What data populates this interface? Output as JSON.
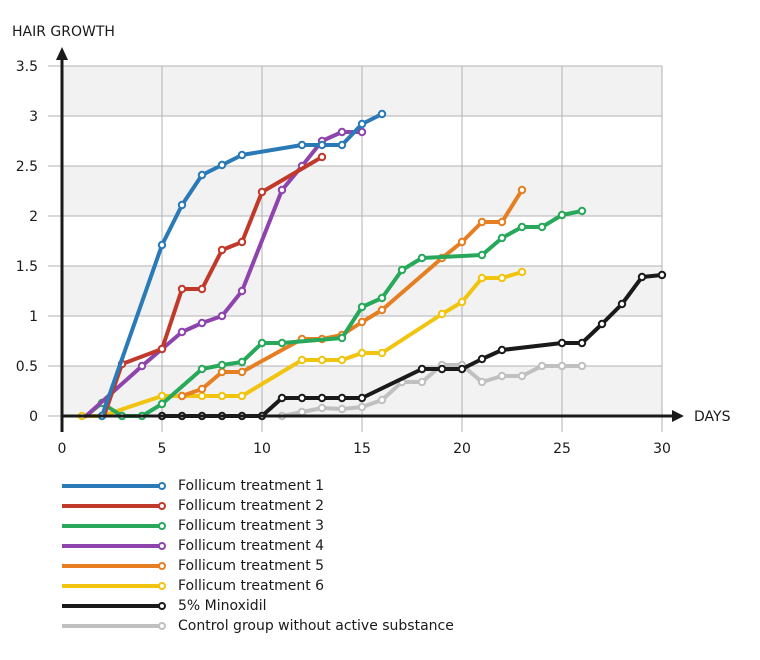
{
  "chart_data": {
    "type": "line",
    "title": "",
    "xlabel": "DAYS",
    "ylabel": "HAIR GROWTH",
    "xlim": [
      0,
      30
    ],
    "ylim": [
      0,
      3.5
    ],
    "xticks": [
      0,
      5,
      10,
      15,
      20,
      25,
      30
    ],
    "yticks": [
      0,
      0.5,
      1,
      1.5,
      2,
      2.5,
      3,
      3.5
    ],
    "ytick_labels": [
      "0",
      "0.5",
      "1",
      "1.5",
      "2",
      "2.5",
      "3",
      "3.5"
    ],
    "grid": true,
    "legend_position": "bottom",
    "series": [
      {
        "name": "Follicum treatment 1",
        "color": "#2a7ab8",
        "points": [
          [
            2,
            0
          ],
          [
            5,
            1.71
          ],
          [
            6,
            2.11
          ],
          [
            7,
            2.41
          ],
          [
            8,
            2.51
          ],
          [
            9,
            2.61
          ],
          [
            12,
            2.71
          ],
          [
            13,
            2.71
          ],
          [
            14,
            2.71
          ],
          [
            15,
            2.92
          ],
          [
            16,
            3.02
          ]
        ]
      },
      {
        "name": "Follicum treatment 2",
        "color": "#c0392b",
        "points": [
          [
            2.1,
            0
          ],
          [
            3,
            0.52
          ],
          [
            5,
            0.67
          ],
          [
            6,
            1.27
          ],
          [
            7,
            1.27
          ],
          [
            8,
            1.66
          ],
          [
            9,
            1.74
          ],
          [
            10,
            2.24
          ],
          [
            13,
            2.59
          ]
        ]
      },
      {
        "name": "Follicum treatment 3",
        "color": "#27a85a",
        "points": [
          [
            1.2,
            0
          ],
          [
            2,
            0.13
          ],
          [
            3,
            0
          ],
          [
            4,
            0
          ],
          [
            5,
            0.12
          ],
          [
            7,
            0.47
          ],
          [
            8,
            0.51
          ],
          [
            9,
            0.54
          ],
          [
            10,
            0.73
          ],
          [
            11,
            0.73
          ],
          [
            14,
            0.78
          ],
          [
            15,
            1.09
          ],
          [
            16,
            1.18
          ],
          [
            17,
            1.46
          ],
          [
            18,
            1.58
          ],
          [
            21,
            1.61
          ],
          [
            22,
            1.78
          ],
          [
            23,
            1.89
          ],
          [
            24,
            1.89
          ],
          [
            25,
            2.01
          ],
          [
            26,
            2.05
          ]
        ]
      },
      {
        "name": "Follicum treatment 4",
        "color": "#8e44ad",
        "points": [
          [
            1.2,
            0
          ],
          [
            4,
            0.5
          ],
          [
            5,
            0.67
          ],
          [
            6,
            0.84
          ],
          [
            7,
            0.93
          ],
          [
            8,
            1.0
          ],
          [
            9,
            1.25
          ],
          [
            11,
            2.26
          ],
          [
            12,
            2.5
          ],
          [
            13,
            2.75
          ],
          [
            14,
            2.84
          ],
          [
            15,
            2.84
          ]
        ]
      },
      {
        "name": "Follicum treatment 5",
        "color": "#e67e22",
        "points": [
          [
            6,
            0.2
          ],
          [
            7,
            0.27
          ],
          [
            8,
            0.44
          ],
          [
            9,
            0.44
          ],
          [
            12,
            0.77
          ],
          [
            13,
            0.77
          ],
          [
            14,
            0.81
          ],
          [
            15,
            0.94
          ],
          [
            16,
            1.06
          ],
          [
            19,
            1.58
          ],
          [
            20,
            1.74
          ],
          [
            21,
            1.94
          ],
          [
            22,
            1.94
          ],
          [
            23,
            2.26
          ]
        ]
      },
      {
        "name": "Follicum treatment 6",
        "color": "#f1c40f",
        "points": [
          [
            1,
            0
          ],
          [
            2,
            0
          ],
          [
            5,
            0.2
          ],
          [
            6,
            0.2
          ],
          [
            7,
            0.2
          ],
          [
            8,
            0.2
          ],
          [
            9,
            0.2
          ],
          [
            12,
            0.56
          ],
          [
            13,
            0.56
          ],
          [
            14,
            0.56
          ],
          [
            15,
            0.63
          ],
          [
            16,
            0.63
          ],
          [
            19,
            1.02
          ],
          [
            20,
            1.14
          ],
          [
            21,
            1.38
          ],
          [
            22,
            1.38
          ],
          [
            23,
            1.44
          ]
        ]
      },
      {
        "name": "5% Minoxidil",
        "color": "#1a1a1a",
        "points": [
          [
            5,
            0
          ],
          [
            6,
            0
          ],
          [
            7,
            0
          ],
          [
            8,
            0
          ],
          [
            9,
            0
          ],
          [
            10,
            0
          ],
          [
            11,
            0.18
          ],
          [
            12,
            0.18
          ],
          [
            13,
            0.18
          ],
          [
            14,
            0.18
          ],
          [
            15,
            0.18
          ],
          [
            18,
            0.47
          ],
          [
            19,
            0.47
          ],
          [
            20,
            0.47
          ],
          [
            21,
            0.57
          ],
          [
            22,
            0.66
          ],
          [
            25,
            0.73
          ],
          [
            26,
            0.73
          ],
          [
            27,
            0.92
          ],
          [
            28,
            1.12
          ],
          [
            29,
            1.39
          ],
          [
            30,
            1.41
          ]
        ]
      },
      {
        "name": "Control group without active substance",
        "color": "#c0c0c0",
        "points": [
          [
            11,
            0
          ],
          [
            12,
            0.04
          ],
          [
            13,
            0.08
          ],
          [
            14,
            0.07
          ],
          [
            15,
            0.09
          ],
          [
            16,
            0.16
          ],
          [
            17,
            0.34
          ],
          [
            18,
            0.34
          ],
          [
            19,
            0.51
          ],
          [
            20,
            0.51
          ],
          [
            21,
            0.34
          ],
          [
            22,
            0.4
          ],
          [
            23,
            0.4
          ],
          [
            24,
            0.5
          ],
          [
            25,
            0.5
          ],
          [
            26,
            0.5
          ]
        ]
      }
    ]
  },
  "axes": {
    "y_title": "HAIR GROWTH",
    "x_title": "DAYS"
  },
  "colors": {
    "band": "#f2f2f2",
    "grid": "#b3b3b3",
    "axis": "#1a1a1a"
  }
}
